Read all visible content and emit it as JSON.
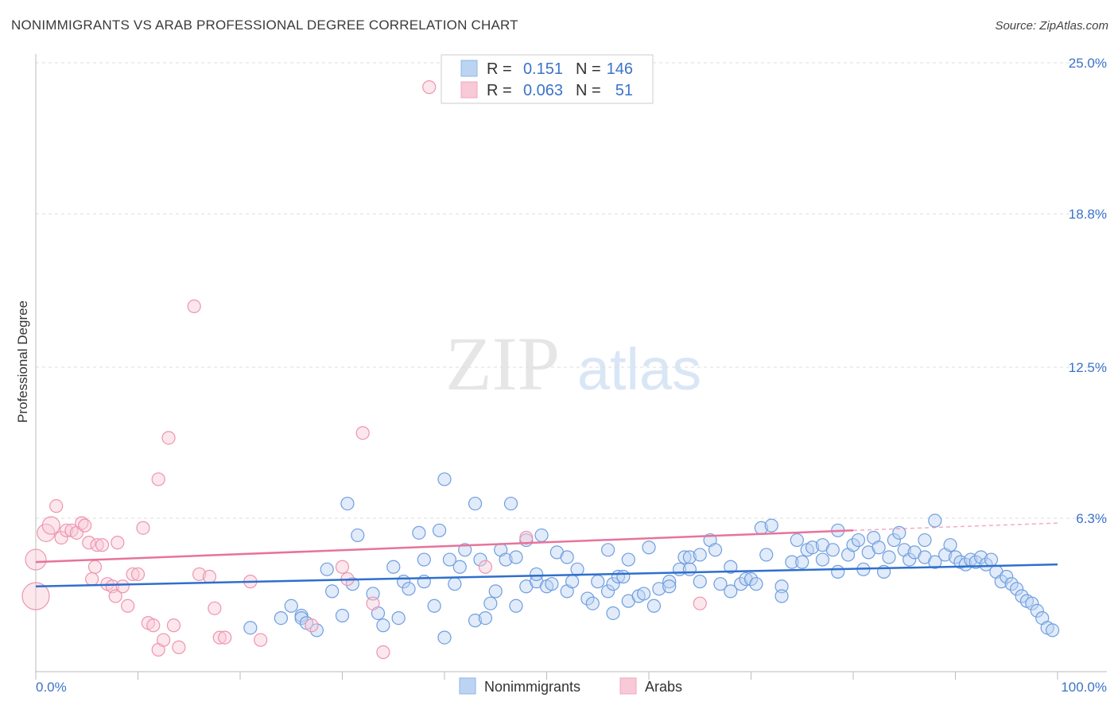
{
  "title": "NONIMMIGRANTS VS ARAB PROFESSIONAL DEGREE CORRELATION CHART",
  "source": "Source: ZipAtlas.com",
  "watermark": {
    "zip": "ZIP",
    "atlas": "atlas"
  },
  "legend_top": [
    {
      "r_label": "R =",
      "r_value": "0.151",
      "n_label": "N =",
      "n_value": "146"
    },
    {
      "r_label": "R =",
      "r_value": "0.063",
      "n_label": "N =",
      "n_value": "51"
    }
  ],
  "chart_data": {
    "type": "scatter",
    "title": "NONIMMIGRANTS VS ARAB PROFESSIONAL DEGREE CORRELATION CHART",
    "xlabel": "",
    "ylabel": "Professional Degree",
    "xlim": [
      0,
      100
    ],
    "ylim": [
      0,
      25.0
    ],
    "x_tick_labels": [
      "0.0%",
      "100.0%"
    ],
    "y_ticks": [
      6.3,
      12.5,
      18.8,
      25.0
    ],
    "y_tick_labels": [
      "6.3%",
      "12.5%",
      "18.8%",
      "25.0%"
    ],
    "grid": true,
    "legend": [
      "Nonimmigrants",
      "Arabs"
    ],
    "colors": {
      "Nonimmigrants": "#8fb4e8",
      "Arabs": "#f2a7bf",
      "NonimmigrantsLine": "#2f6fcc",
      "ArabsLine": "#e8739a"
    },
    "trendlines": [
      {
        "series": "Nonimmigrants",
        "x": [
          0,
          100
        ],
        "y": [
          3.5,
          4.4
        ]
      },
      {
        "series": "Arabs",
        "x": [
          0,
          80,
          100
        ],
        "y": [
          4.5,
          5.8,
          6.1
        ]
      }
    ],
    "series": [
      {
        "name": "Nonimmigrants",
        "points": [
          [
            21,
            1.8
          ],
          [
            24,
            2.2
          ],
          [
            25,
            2.7
          ],
          [
            26,
            2.3
          ],
          [
            26,
            2.2
          ],
          [
            26.5,
            2.0
          ],
          [
            27.5,
            1.7
          ],
          [
            28.5,
            4.2
          ],
          [
            29,
            3.3
          ],
          [
            30,
            2.3
          ],
          [
            30.5,
            6.9
          ],
          [
            31,
            3.6
          ],
          [
            31.5,
            5.6
          ],
          [
            33,
            3.2
          ],
          [
            33.5,
            2.4
          ],
          [
            34,
            1.9
          ],
          [
            35,
            4.3
          ],
          [
            35.5,
            2.2
          ],
          [
            36,
            3.7
          ],
          [
            36.5,
            3.4
          ],
          [
            37.5,
            5.7
          ],
          [
            38,
            4.6
          ],
          [
            38,
            3.7
          ],
          [
            39,
            2.7
          ],
          [
            39.5,
            5.8
          ],
          [
            40,
            1.4
          ],
          [
            40,
            7.9
          ],
          [
            40.5,
            4.6
          ],
          [
            41,
            3.6
          ],
          [
            41.5,
            4.3
          ],
          [
            42,
            5.0
          ],
          [
            43,
            6.9
          ],
          [
            43,
            2.1
          ],
          [
            43.5,
            4.6
          ],
          [
            44,
            2.2
          ],
          [
            44.5,
            2.8
          ],
          [
            45,
            3.3
          ],
          [
            45.5,
            5.0
          ],
          [
            46,
            4.6
          ],
          [
            46.5,
            6.9
          ],
          [
            47,
            2.7
          ],
          [
            47,
            4.7
          ],
          [
            48,
            5.4
          ],
          [
            48,
            3.5
          ],
          [
            49,
            3.7
          ],
          [
            49,
            4.0
          ],
          [
            49.5,
            5.6
          ],
          [
            50,
            3.5
          ],
          [
            50.5,
            3.6
          ],
          [
            51,
            4.9
          ],
          [
            52,
            3.3
          ],
          [
            52,
            4.7
          ],
          [
            52.5,
            3.7
          ],
          [
            53,
            4.2
          ],
          [
            54,
            3.0
          ],
          [
            54.5,
            2.8
          ],
          [
            55,
            3.7
          ],
          [
            56,
            5.0
          ],
          [
            56,
            3.3
          ],
          [
            56.5,
            3.6
          ],
          [
            56.5,
            2.4
          ],
          [
            57,
            3.9
          ],
          [
            57.5,
            3.9
          ],
          [
            58,
            2.9
          ],
          [
            58,
            4.6
          ],
          [
            59,
            3.1
          ],
          [
            59.5,
            3.2
          ],
          [
            60,
            5.1
          ],
          [
            60.5,
            2.7
          ],
          [
            61,
            3.4
          ],
          [
            62,
            3.7
          ],
          [
            62,
            3.5
          ],
          [
            63,
            4.2
          ],
          [
            63.5,
            4.7
          ],
          [
            64,
            4.7
          ],
          [
            64,
            4.2
          ],
          [
            65,
            4.8
          ],
          [
            65,
            3.7
          ],
          [
            66,
            5.4
          ],
          [
            66.5,
            5.0
          ],
          [
            67,
            3.6
          ],
          [
            68,
            4.3
          ],
          [
            68,
            3.3
          ],
          [
            69,
            3.6
          ],
          [
            69.5,
            3.8
          ],
          [
            70,
            3.8
          ],
          [
            70.5,
            3.6
          ],
          [
            71,
            5.9
          ],
          [
            71.5,
            4.8
          ],
          [
            72,
            6.0
          ],
          [
            73,
            3.5
          ],
          [
            73,
            3.1
          ],
          [
            74,
            4.5
          ],
          [
            74.5,
            5.4
          ],
          [
            75,
            4.5
          ],
          [
            75.5,
            5.0
          ],
          [
            76,
            5.1
          ],
          [
            77,
            5.2
          ],
          [
            77,
            4.6
          ],
          [
            78,
            5.0
          ],
          [
            78.5,
            5.8
          ],
          [
            78.5,
            4.1
          ],
          [
            79.5,
            4.8
          ],
          [
            80,
            5.2
          ],
          [
            80.5,
            5.4
          ],
          [
            81,
            4.2
          ],
          [
            81.5,
            4.9
          ],
          [
            82,
            5.5
          ],
          [
            82.5,
            5.1
          ],
          [
            83,
            4.1
          ],
          [
            83.5,
            4.7
          ],
          [
            84,
            5.4
          ],
          [
            84.5,
            5.7
          ],
          [
            85,
            5.0
          ],
          [
            85.5,
            4.6
          ],
          [
            86,
            4.9
          ],
          [
            87,
            5.4
          ],
          [
            87,
            4.7
          ],
          [
            88,
            6.2
          ],
          [
            88,
            4.5
          ],
          [
            89,
            4.8
          ],
          [
            89.5,
            5.2
          ],
          [
            90,
            4.7
          ],
          [
            90.5,
            4.5
          ],
          [
            91,
            4.4
          ],
          [
            91.5,
            4.6
          ],
          [
            92,
            4.5
          ],
          [
            92.5,
            4.7
          ],
          [
            93,
            4.4
          ],
          [
            93.5,
            4.6
          ],
          [
            94,
            4.1
          ],
          [
            94.5,
            3.7
          ],
          [
            95,
            3.9
          ],
          [
            95.5,
            3.6
          ],
          [
            96,
            3.4
          ],
          [
            96.5,
            3.1
          ],
          [
            97,
            2.9
          ],
          [
            97.5,
            2.8
          ],
          [
            98,
            2.5
          ],
          [
            98.5,
            2.2
          ],
          [
            99,
            1.8
          ],
          [
            99.5,
            1.7
          ]
        ]
      },
      {
        "name": "Arabs",
        "points": [
          [
            0,
            3.1
          ],
          [
            0,
            4.6
          ],
          [
            1,
            5.7
          ],
          [
            1.5,
            6.0
          ],
          [
            2,
            6.8
          ],
          [
            2.5,
            5.5
          ],
          [
            3,
            5.8
          ],
          [
            3.5,
            5.8
          ],
          [
            4,
            5.7
          ],
          [
            4.5,
            6.1
          ],
          [
            4.8,
            6.0
          ],
          [
            5.2,
            5.3
          ],
          [
            5.5,
            3.8
          ],
          [
            5.8,
            4.3
          ],
          [
            6,
            5.2
          ],
          [
            6.5,
            5.2
          ],
          [
            7,
            3.6
          ],
          [
            7.5,
            3.5
          ],
          [
            7.8,
            3.1
          ],
          [
            8,
            5.3
          ],
          [
            8.5,
            3.5
          ],
          [
            9,
            2.7
          ],
          [
            9.5,
            4.0
          ],
          [
            10,
            4.0
          ],
          [
            10.5,
            5.9
          ],
          [
            11,
            2.0
          ],
          [
            11.5,
            1.9
          ],
          [
            12,
            0.9
          ],
          [
            12,
            7.9
          ],
          [
            12.5,
            1.3
          ],
          [
            13,
            9.6
          ],
          [
            13.5,
            1.9
          ],
          [
            14,
            1.0
          ],
          [
            15.5,
            15.0
          ],
          [
            16,
            4.0
          ],
          [
            17,
            3.9
          ],
          [
            17.5,
            2.6
          ],
          [
            18,
            1.4
          ],
          [
            18.5,
            1.4
          ],
          [
            21,
            3.7
          ],
          [
            22,
            1.3
          ],
          [
            27,
            1.9
          ],
          [
            30,
            4.3
          ],
          [
            30.5,
            3.8
          ],
          [
            32,
            9.8
          ],
          [
            33,
            2.8
          ],
          [
            34,
            0.8
          ],
          [
            38.5,
            24.0
          ],
          [
            44,
            4.3
          ],
          [
            48,
            5.5
          ],
          [
            65,
            2.8
          ]
        ]
      }
    ]
  }
}
